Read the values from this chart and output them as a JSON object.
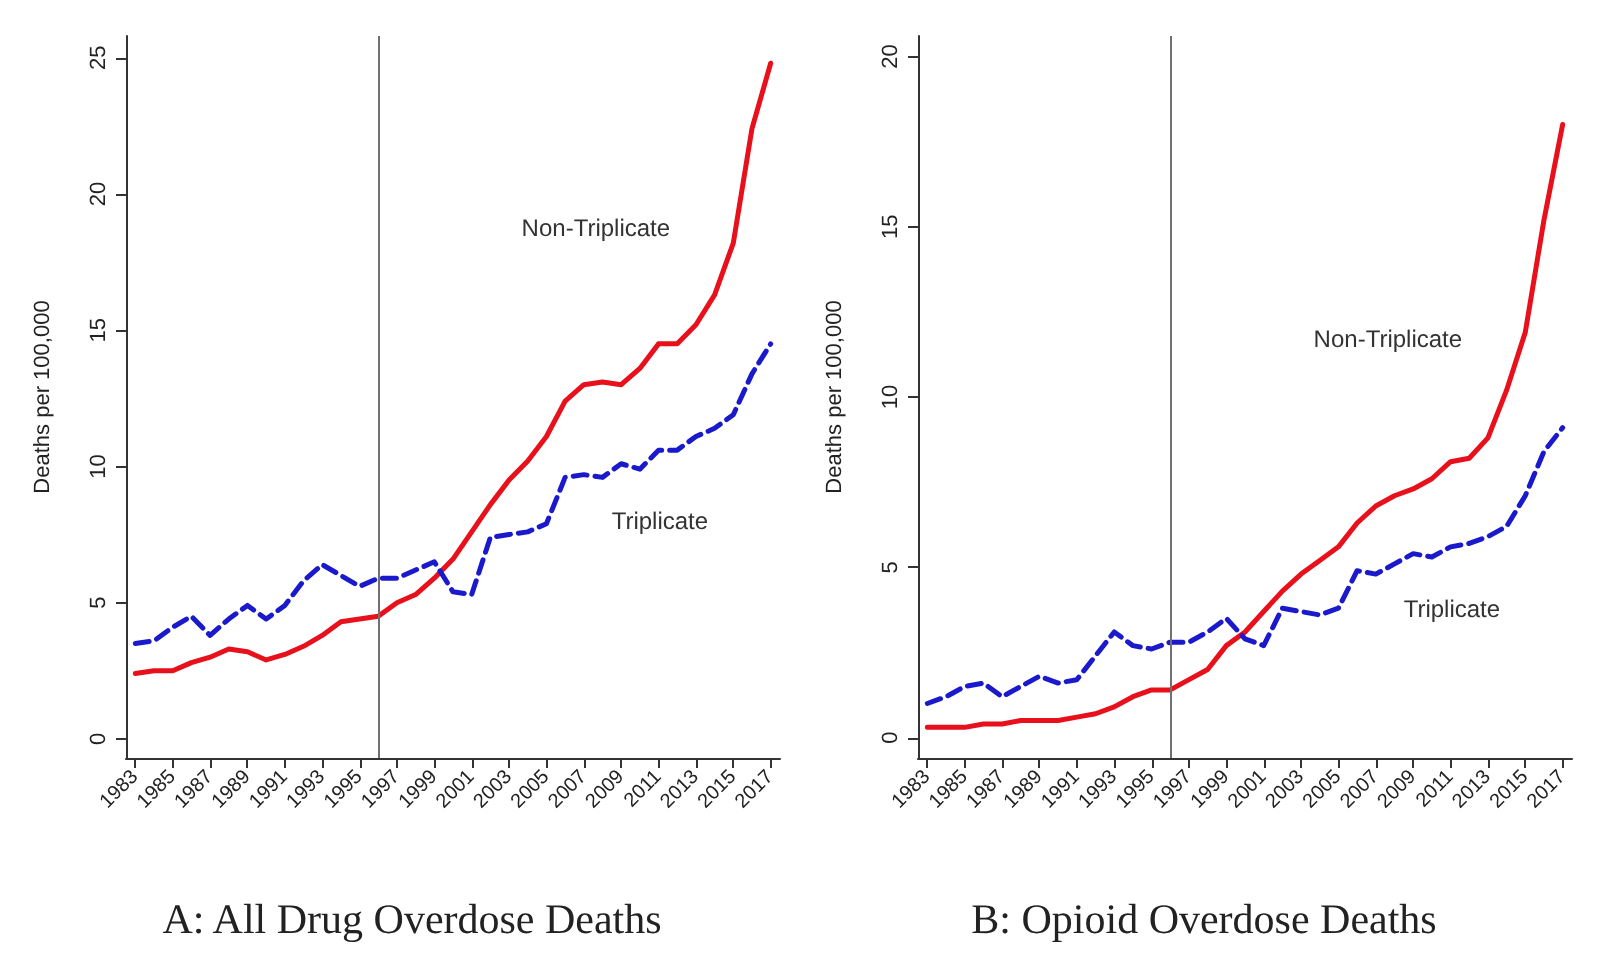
{
  "chart_data": [
    {
      "type": "line",
      "title": "A: All Drug Overdose Deaths",
      "ylabel": "Deaths per 100,000",
      "x": [
        1983,
        1984,
        1985,
        1986,
        1987,
        1988,
        1989,
        1990,
        1991,
        1992,
        1993,
        1994,
        1995,
        1996,
        1997,
        1998,
        1999,
        2000,
        2001,
        2002,
        2003,
        2004,
        2005,
        2006,
        2007,
        2008,
        2009,
        2010,
        2011,
        2012,
        2013,
        2014,
        2015,
        2016,
        2017
      ],
      "series": [
        {
          "name": "Non-Triplicate",
          "color": "#e8101a",
          "line_style": "solid",
          "values": [
            2.4,
            2.5,
            2.5,
            2.8,
            3.0,
            3.3,
            3.2,
            2.9,
            3.1,
            3.4,
            3.8,
            4.3,
            4.4,
            4.5,
            5.0,
            5.3,
            5.9,
            6.6,
            7.6,
            8.6,
            9.5,
            10.2,
            11.1,
            12.4,
            13.0,
            13.1,
            13.0,
            13.6,
            14.5,
            14.5,
            15.2,
            16.3,
            18.2,
            22.4,
            24.8
          ]
        },
        {
          "name": "Triplicate",
          "color": "#1a1acc",
          "line_style": "dashed",
          "values": [
            3.5,
            3.6,
            4.1,
            4.5,
            3.8,
            4.4,
            4.9,
            4.4,
            4.9,
            5.8,
            6.4,
            6.0,
            5.6,
            5.9,
            5.9,
            6.2,
            6.5,
            5.4,
            5.3,
            7.4,
            7.5,
            7.6,
            7.9,
            9.6,
            9.7,
            9.6,
            10.1,
            9.9,
            10.6,
            10.6,
            11.1,
            11.4,
            11.9,
            13.4,
            14.5
          ]
        }
      ],
      "xlim": [
        1982.5,
        2017.5
      ],
      "xticks": [
        1983,
        1985,
        1987,
        1989,
        1991,
        1993,
        1995,
        1997,
        1999,
        2001,
        2003,
        2005,
        2007,
        2009,
        2011,
        2013,
        2015,
        2017
      ],
      "ylim": [
        -0.7,
        25.8
      ],
      "yticks": [
        0,
        5,
        10,
        15,
        20,
        25
      ],
      "ref_lines": [
        {
          "axis": "x",
          "value": 1996,
          "color": "#707070"
        }
      ],
      "grid": false,
      "legend": false,
      "marker": "none"
    },
    {
      "type": "line",
      "title": "B: Opioid Overdose Deaths",
      "ylabel": "Deaths per 100,000",
      "x": [
        1983,
        1984,
        1985,
        1986,
        1987,
        1988,
        1989,
        1990,
        1991,
        1992,
        1993,
        1994,
        1995,
        1996,
        1997,
        1998,
        1999,
        2000,
        2001,
        2002,
        2003,
        2004,
        2005,
        2006,
        2007,
        2008,
        2009,
        2010,
        2011,
        2012,
        2013,
        2014,
        2015,
        2016,
        2017
      ],
      "series": [
        {
          "name": "Non-Triplicate",
          "color": "#e8101a",
          "line_style": "solid",
          "values": [
            0.3,
            0.3,
            0.3,
            0.4,
            0.4,
            0.5,
            0.5,
            0.5,
            0.6,
            0.7,
            0.9,
            1.2,
            1.4,
            1.4,
            1.7,
            2.0,
            2.7,
            3.1,
            3.7,
            4.3,
            4.8,
            5.2,
            5.6,
            6.3,
            6.8,
            7.1,
            7.3,
            7.6,
            8.1,
            8.2,
            8.8,
            10.2,
            11.9,
            15.2,
            18.0
          ]
        },
        {
          "name": "Triplicate",
          "color": "#1a1acc",
          "line_style": "dashed",
          "values": [
            1.0,
            1.2,
            1.5,
            1.6,
            1.2,
            1.5,
            1.8,
            1.6,
            1.7,
            2.4,
            3.1,
            2.7,
            2.6,
            2.8,
            2.8,
            3.1,
            3.5,
            2.9,
            2.7,
            3.8,
            3.7,
            3.6,
            3.8,
            4.9,
            4.8,
            5.1,
            5.4,
            5.3,
            5.6,
            5.7,
            5.9,
            6.2,
            7.1,
            8.4,
            9.1
          ]
        }
      ],
      "xlim": [
        1982.5,
        2017.5
      ],
      "xticks": [
        1983,
        1985,
        1987,
        1989,
        1991,
        1993,
        1995,
        1997,
        1999,
        2001,
        2003,
        2005,
        2007,
        2009,
        2011,
        2013,
        2015,
        2017
      ],
      "ylim": [
        -0.6,
        20.6
      ],
      "yticks": [
        0,
        5,
        10,
        15,
        20
      ],
      "ref_lines": [
        {
          "axis": "x",
          "value": 1996,
          "color": "#707070"
        }
      ],
      "grid": false,
      "legend": false,
      "marker": "none"
    }
  ]
}
